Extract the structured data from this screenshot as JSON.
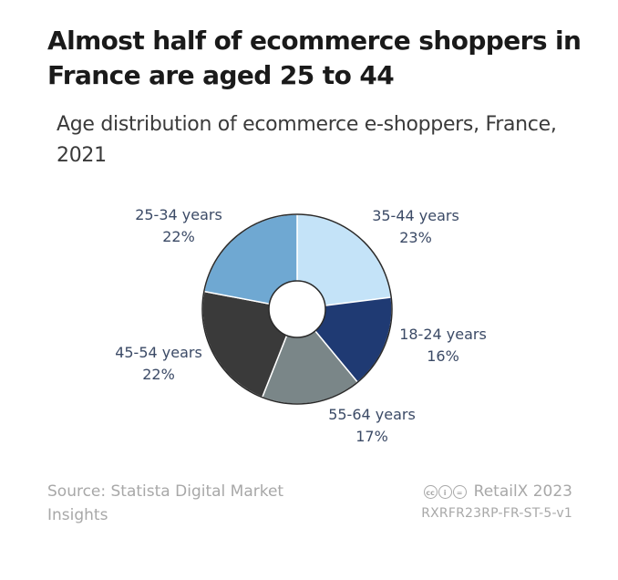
{
  "title": "Almost half of ecommerce shoppers in France are aged 25 to 44",
  "subtitle": "Age distribution of ecommerce e-shoppers, France, 2021",
  "chart_data": {
    "type": "pie",
    "title": "Almost half of ecommerce shoppers in France are aged 25 to 44",
    "subtitle": "Age distribution of ecommerce e-shoppers, France, 2021",
    "categories": [
      "35-44 years",
      "18-24 years",
      "55-64 years",
      "45-54 years",
      "25-34 years"
    ],
    "values": [
      23,
      16,
      17,
      22,
      22
    ],
    "value_labels": [
      "23%",
      "16%",
      "17%",
      "22%",
      "22%"
    ],
    "colors": [
      "#c4e3f8",
      "#1f3a73",
      "#7a8688",
      "#3a3a3a",
      "#6fa8d2"
    ],
    "donut": true
  },
  "footer": {
    "source_line1": "Source: Statista Digital Market",
    "source_line2": "Insights",
    "cc_cc": "cc",
    "cc_by": "i",
    "cc_eq": "=",
    "brand": "RetailX 2023",
    "code": "RXRFR23RP-FR-ST-5-v1"
  },
  "icons": {
    "license": "creative-commons-icon"
  }
}
